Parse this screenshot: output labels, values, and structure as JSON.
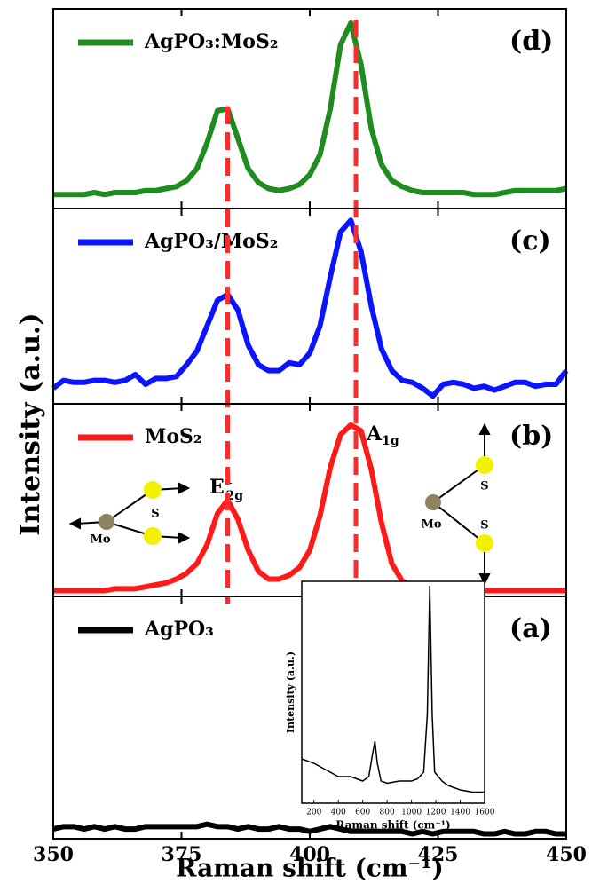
{
  "figure": {
    "xlabel": "Raman shift (cm⁻¹)",
    "ylabel": "Intensity (a.u.)",
    "xlim": [
      350,
      450
    ],
    "xticks": [
      350,
      375,
      400,
      425,
      450
    ],
    "reference_x": [
      384,
      409
    ],
    "reference_color": "#ff2a2a"
  },
  "chart_data": [
    {
      "type": "line",
      "panel_label": "(d)",
      "ylim": [
        0,
        100
      ],
      "x": [
        350,
        352,
        354,
        356,
        358,
        360,
        362,
        364,
        366,
        368,
        370,
        372,
        374,
        376,
        378,
        380,
        382,
        384,
        386,
        388,
        390,
        392,
        394,
        396,
        398,
        400,
        402,
        404,
        406,
        408,
        410,
        412,
        414,
        416,
        418,
        420,
        422,
        424,
        426,
        428,
        430,
        432,
        434,
        436,
        438,
        440,
        442,
        444,
        446,
        448,
        450
      ],
      "series": [
        {
          "name": "AgPO₃:MoS₂",
          "color": "#1e8c1e",
          "values": [
            7,
            7,
            7,
            7,
            8,
            7,
            8,
            8,
            8,
            9,
            9,
            10,
            11,
            14,
            20,
            33,
            49,
            50,
            35,
            20,
            13,
            10,
            9,
            10,
            12,
            17,
            27,
            50,
            82,
            93,
            72,
            40,
            22,
            14,
            11,
            9,
            8,
            8,
            8,
            8,
            8,
            7,
            7,
            7,
            8,
            9,
            9,
            9,
            9,
            9,
            10
          ]
        }
      ]
    },
    {
      "type": "line",
      "panel_label": "(c)",
      "ylim": [
        0,
        100
      ],
      "x": [
        350,
        352,
        354,
        356,
        358,
        360,
        362,
        364,
        366,
        368,
        370,
        372,
        374,
        376,
        378,
        380,
        382,
        384,
        386,
        388,
        390,
        392,
        394,
        396,
        398,
        400,
        402,
        404,
        406,
        408,
        410,
        412,
        414,
        416,
        418,
        420,
        422,
        424,
        426,
        428,
        430,
        432,
        434,
        436,
        438,
        440,
        442,
        444,
        446,
        448,
        450
      ],
      "series": [
        {
          "name": "AgPO₃/MoS₂",
          "color": "#0a14ff",
          "values": [
            8,
            12,
            11,
            11,
            12,
            12,
            11,
            12,
            15,
            10,
            13,
            13,
            14,
            20,
            27,
            40,
            53,
            56,
            48,
            30,
            20,
            17,
            17,
            21,
            20,
            26,
            40,
            65,
            88,
            94,
            78,
            50,
            28,
            17,
            12,
            11,
            8,
            4,
            10,
            11,
            10,
            8,
            9,
            7,
            9,
            11,
            11,
            9,
            10,
            10,
            17
          ]
        }
      ]
    },
    {
      "type": "line",
      "panel_label": "(b)",
      "ylim": [
        0,
        100
      ],
      "x": [
        350,
        352,
        354,
        356,
        358,
        360,
        362,
        364,
        366,
        368,
        370,
        372,
        374,
        376,
        378,
        380,
        382,
        384,
        386,
        388,
        390,
        392,
        394,
        396,
        398,
        400,
        402,
        404,
        406,
        408,
        410,
        412,
        414,
        416,
        418,
        420,
        422,
        424,
        426,
        428,
        430,
        432,
        434,
        436,
        438,
        440,
        442,
        444,
        446,
        448,
        450
      ],
      "series": [
        {
          "name": "MoS₂",
          "color": "#ff1a1a",
          "values": [
            3,
            3,
            3,
            3,
            3,
            3,
            4,
            4,
            4,
            5,
            6,
            7,
            9,
            12,
            17,
            27,
            43,
            50,
            40,
            24,
            13,
            9,
            9,
            11,
            15,
            24,
            42,
            67,
            84,
            89,
            86,
            66,
            38,
            17,
            8,
            5,
            4,
            4,
            3,
            3,
            3,
            3,
            3,
            3,
            3,
            3,
            3,
            3,
            3,
            3,
            3
          ]
        }
      ],
      "annotations": [
        {
          "base": "E",
          "sup": "1",
          "sub": "2g"
        },
        {
          "base": "A",
          "sub": "1g"
        }
      ],
      "diagram_labels": {
        "left": [
          "Mo",
          "S"
        ],
        "right": [
          "Mo",
          "S",
          "S"
        ]
      }
    },
    {
      "type": "line",
      "panel_label": "(a)",
      "ylim": [
        0,
        100
      ],
      "x": [
        350,
        352,
        354,
        356,
        358,
        360,
        362,
        364,
        366,
        368,
        370,
        372,
        374,
        376,
        378,
        380,
        382,
        384,
        386,
        388,
        390,
        392,
        394,
        396,
        398,
        400,
        402,
        404,
        406,
        408,
        410,
        412,
        414,
        416,
        418,
        420,
        422,
        424,
        426,
        428,
        430,
        432,
        434,
        436,
        438,
        440,
        442,
        444,
        446,
        448,
        450
      ],
      "series": [
        {
          "name": "AgPO₃",
          "color": "#000000",
          "values": [
            4,
            5,
            5,
            4,
            5,
            4,
            5,
            4,
            4,
            5,
            5,
            5,
            5,
            5,
            5,
            6,
            5,
            5,
            4,
            5,
            4,
            4,
            5,
            4,
            4,
            3,
            4,
            5,
            4,
            3,
            3,
            3,
            3,
            3,
            3,
            2,
            3,
            2,
            3,
            3,
            3,
            3,
            2,
            2,
            3,
            2,
            2,
            3,
            3,
            2,
            2
          ]
        }
      ]
    },
    {
      "type": "line",
      "xlabel": "Raman shift (cm⁻¹)",
      "ylabel": "Intensity (a.u.)",
      "xlim": [
        100,
        1600
      ],
      "ylim": [
        0,
        100
      ],
      "xticks": [
        200,
        400,
        600,
        800,
        1000,
        1200,
        1400,
        1600
      ],
      "x": [
        100,
        200,
        300,
        400,
        500,
        600,
        650,
        680,
        700,
        720,
        750,
        800,
        900,
        1000,
        1050,
        1100,
        1130,
        1150,
        1170,
        1190,
        1250,
        1300,
        1400,
        1500,
        1600
      ],
      "series": [
        {
          "color": "#000000",
          "values": [
            20,
            18,
            15,
            12,
            12,
            10,
            12,
            22,
            28,
            18,
            10,
            9,
            10,
            10,
            11,
            14,
            40,
            98,
            40,
            14,
            10,
            8,
            6,
            5,
            5
          ]
        }
      ]
    }
  ]
}
